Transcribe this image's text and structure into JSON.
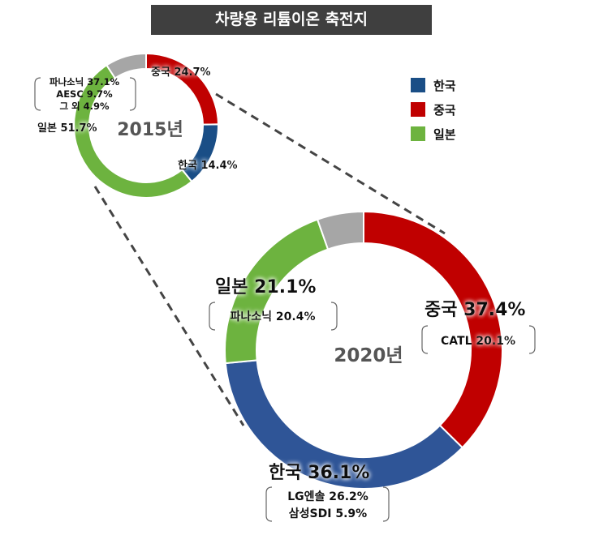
{
  "title": "차량용 리튬이온 축전지",
  "colors": {
    "korea": "#1a4e86",
    "korea_2020": "#2f5597",
    "china": "#c00000",
    "japan": "#6db33f",
    "other": "#a6a6a6"
  },
  "legend": [
    {
      "label": "한국",
      "color": "#1a4e86"
    },
    {
      "label": "중국",
      "color": "#c00000"
    },
    {
      "label": "일본",
      "color": "#6db33f"
    }
  ],
  "chart_data": [
    {
      "type": "pie",
      "center_label": "2015년",
      "slices": [
        {
          "name": "중국",
          "value": 24.7,
          "label": "중국 24.7%",
          "color": "#c00000"
        },
        {
          "name": "한국",
          "value": 14.4,
          "label": "한국 14.4%",
          "color": "#1a4e86"
        },
        {
          "name": "일본",
          "value": 51.7,
          "label": "일본 51.7%",
          "color": "#6db33f",
          "detail": [
            "파나소닉 37.1%",
            "AESC 9.7%",
            "그 외 4.9%"
          ]
        },
        {
          "name": "",
          "value": 9.2,
          "label": "",
          "color": "#a6a6a6"
        }
      ]
    },
    {
      "type": "pie",
      "center_label": "2020년",
      "slices": [
        {
          "name": "중국",
          "value": 37.4,
          "label": "중국 37.4%",
          "color": "#c00000",
          "detail": [
            "CATL 20.1%"
          ]
        },
        {
          "name": "한국",
          "value": 36.1,
          "label": "한국 36.1%",
          "color": "#2f5597",
          "detail": [
            "LG엔솔 26.2%",
            "삼성SDI 5.9%"
          ]
        },
        {
          "name": "일본",
          "value": 21.1,
          "label": "일본 21.1%",
          "color": "#6db33f",
          "detail": [
            "파나소닉 20.4%"
          ]
        },
        {
          "name": "",
          "value": 5.4,
          "label": "",
          "color": "#a6a6a6"
        }
      ]
    }
  ]
}
